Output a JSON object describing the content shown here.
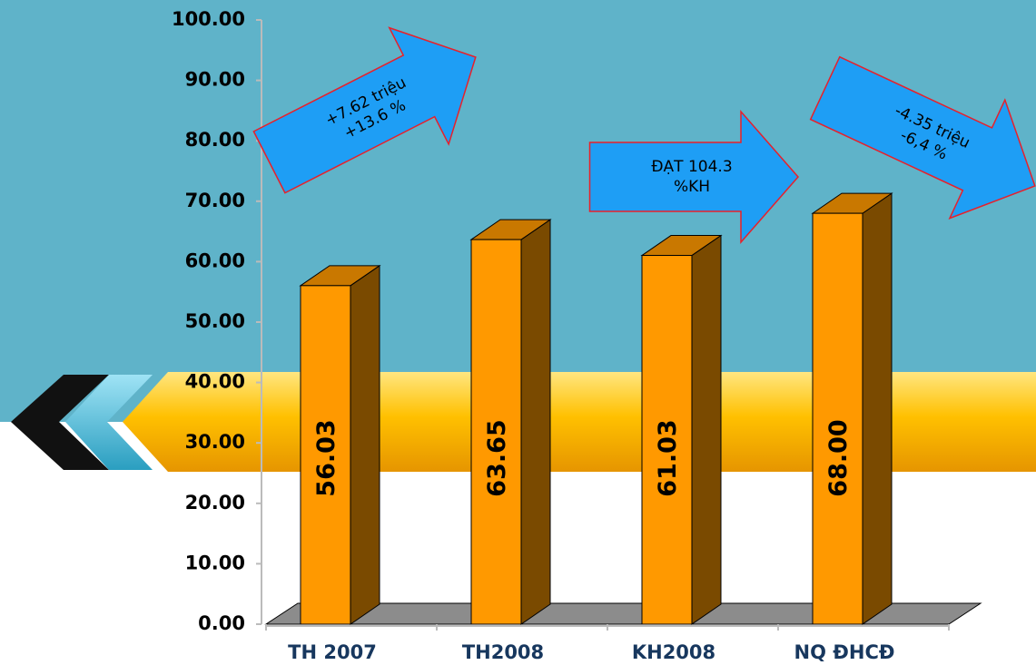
{
  "chart_data": {
    "type": "bar3d",
    "categories": [
      "TH 2007",
      "TH2008",
      "KH2008",
      "NQ ĐHCĐ"
    ],
    "values": [
      56.03,
      63.65,
      61.03,
      68.0
    ],
    "value_labels": [
      "56.03",
      "63.65",
      "61.03",
      "68.00"
    ],
    "color": "#ff9900",
    "ylim": [
      0,
      100
    ],
    "yticks": [
      {
        "value": 0,
        "label": "0.00"
      },
      {
        "value": 10,
        "label": "10.00"
      },
      {
        "value": 20,
        "label": "20.00"
      },
      {
        "value": 30,
        "label": "30.00"
      },
      {
        "value": 40,
        "label": "40.00"
      },
      {
        "value": 50,
        "label": "50.00"
      },
      {
        "value": 60,
        "label": "60.00"
      },
      {
        "value": 70,
        "label": "70.00"
      },
      {
        "value": 80,
        "label": "80.00"
      },
      {
        "value": 90,
        "label": "90.00"
      },
      {
        "value": 100,
        "label": "100.00"
      }
    ],
    "annotations": [
      [
        "+7.62 triệu",
        "+13.6 %"
      ],
      [
        "ĐẠT 104.3",
        "%KH"
      ],
      [
        "-4.35 triệu",
        "-6,4 %"
      ]
    ]
  }
}
